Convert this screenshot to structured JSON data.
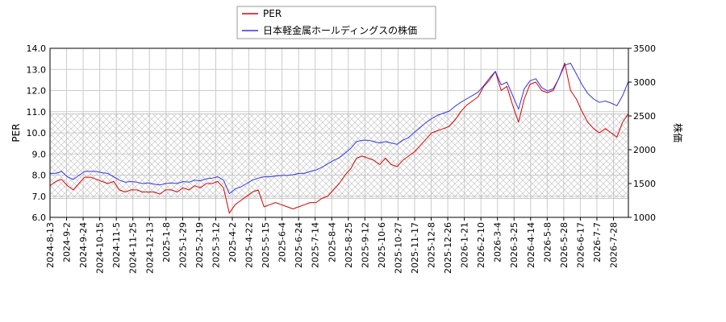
{
  "chart_data": {
    "type": "line",
    "title": "",
    "xlabel": "",
    "ylabel_left": "PER",
    "ylabel_right": "株価",
    "ylim_left": [
      6.0,
      14.0
    ],
    "ylim_right": [
      1000,
      3500
    ],
    "yticks_left": [
      "6.0",
      "7.0",
      "8.0",
      "9.0",
      "10.0",
      "11.0",
      "12.0",
      "13.0",
      "14.0"
    ],
    "yticks_right": [
      "1000",
      "1500",
      "2000",
      "2500",
      "3000",
      "3500"
    ],
    "x_ticks": [
      "2024-8-13",
      "2024-9-2",
      "2024-9-24",
      "2024-10-15",
      "2024-11-5",
      "2024-11-25",
      "2024-12-13",
      "2025-1-8",
      "2025-1-29",
      "2025-2-19",
      "2025-3-12",
      "2025-4-2",
      "2025-4-22",
      "2025-5-15",
      "2025-6-4",
      "2025-6-24",
      "2025-7-14",
      "2025-8-4",
      "2025-8-25",
      "2025-9-12",
      "2025-10-6",
      "2025-10-27",
      "2025-11-17",
      "2025-12-8",
      "2025-12-26",
      "2026-1-21",
      "2026-2-10",
      "2026-3-4",
      "2026-3-25",
      "2026-4-14",
      "2026-5-8",
      "2026-5-28",
      "2026-6-17",
      "2026-7-7",
      "2026-7-28"
    ],
    "grid": true,
    "legend_position": "top",
    "shaded_band_left": [
      6.9,
      10.9
    ],
    "series": [
      {
        "name": "PER",
        "axis": "left",
        "color": "#dd0000",
        "values": [
          7.5,
          7.7,
          7.8,
          7.5,
          7.3,
          7.6,
          7.9,
          7.9,
          7.8,
          7.7,
          7.6,
          7.7,
          7.3,
          7.2,
          7.3,
          7.3,
          7.2,
          7.2,
          7.2,
          7.1,
          7.3,
          7.3,
          7.2,
          7.4,
          7.3,
          7.5,
          7.4,
          7.6,
          7.6,
          7.7,
          7.4,
          6.2,
          6.6,
          6.8,
          7.0,
          7.2,
          7.3,
          6.5,
          6.6,
          6.7,
          6.6,
          6.5,
          6.4,
          6.5,
          6.6,
          6.7,
          6.7,
          6.9,
          7.0,
          7.3,
          7.6,
          8.0,
          8.3,
          8.8,
          8.9,
          8.8,
          8.7,
          8.5,
          8.8,
          8.5,
          8.4,
          8.7,
          8.9,
          9.1,
          9.4,
          9.7,
          10.0,
          10.1,
          10.2,
          10.3,
          10.6,
          11.0,
          11.3,
          11.5,
          11.7,
          12.2,
          12.5,
          12.9,
          12.0,
          12.2,
          11.3,
          10.5,
          11.6,
          12.3,
          12.4,
          12.0,
          11.9,
          12.0,
          12.6,
          13.3,
          12.0,
          11.6,
          11.0,
          10.5,
          10.2,
          10.0,
          10.2,
          10.0,
          9.8,
          10.5,
          10.9
        ]
      },
      {
        "name": "日本軽金属ホールディングスの株価",
        "axis": "right",
        "color": "#3333ee",
        "values": [
          1650,
          1650,
          1680,
          1600,
          1560,
          1620,
          1680,
          1680,
          1680,
          1660,
          1650,
          1600,
          1550,
          1520,
          1530,
          1520,
          1500,
          1510,
          1490,
          1480,
          1500,
          1510,
          1500,
          1530,
          1520,
          1550,
          1540,
          1570,
          1580,
          1600,
          1550,
          1350,
          1420,
          1450,
          1500,
          1550,
          1580,
          1600,
          1600,
          1610,
          1620,
          1620,
          1630,
          1650,
          1650,
          1680,
          1700,
          1740,
          1790,
          1840,
          1880,
          1950,
          2020,
          2120,
          2140,
          2140,
          2120,
          2100,
          2120,
          2100,
          2080,
          2140,
          2180,
          2260,
          2330,
          2400,
          2460,
          2510,
          2540,
          2570,
          2640,
          2700,
          2750,
          2800,
          2850,
          2950,
          3060,
          3160,
          2960,
          3000,
          2800,
          2600,
          2900,
          3020,
          3050,
          2920,
          2870,
          2900,
          3060,
          3250,
          3280,
          3120,
          2960,
          2830,
          2750,
          2700,
          2720,
          2690,
          2650,
          2800,
          3010
        ]
      }
    ]
  }
}
